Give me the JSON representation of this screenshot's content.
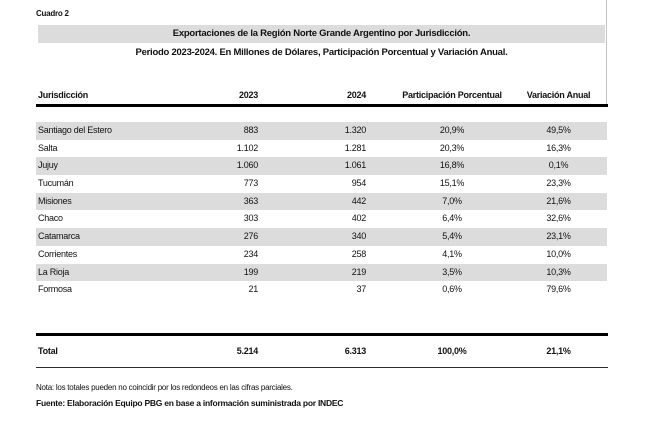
{
  "page": {
    "label": "Cuadro 2",
    "title_line1": "Exportaciones de la Región Norte Grande Argentino por Jurisdicción.",
    "title_line2": "Periodo 2023-2024. En Millones de Dólares, Participación Porcentual y Variación Anual."
  },
  "table": {
    "columns": [
      "Jurisdicción",
      "2023",
      "2024",
      "Participación Porcentual",
      "Variación Anual"
    ],
    "rows": [
      {
        "jurisdiccion": "Santiago del Estero",
        "y2023": "883",
        "y2024": "1.320",
        "participacion": "20,9%",
        "variacion": "49,5%"
      },
      {
        "jurisdiccion": "Salta",
        "y2023": "1.102",
        "y2024": "1.281",
        "participacion": "20,3%",
        "variacion": "16,3%"
      },
      {
        "jurisdiccion": "Jujuy",
        "y2023": "1.060",
        "y2024": "1.061",
        "participacion": "16,8%",
        "variacion": "0,1%"
      },
      {
        "jurisdiccion": "Tucumán",
        "y2023": "773",
        "y2024": "954",
        "participacion": "15,1%",
        "variacion": "23,3%"
      },
      {
        "jurisdiccion": "Misiones",
        "y2023": "363",
        "y2024": "442",
        "participacion": "7,0%",
        "variacion": "21,6%"
      },
      {
        "jurisdiccion": "Chaco",
        "y2023": "303",
        "y2024": "402",
        "participacion": "6,4%",
        "variacion": "32,6%"
      },
      {
        "jurisdiccion": "Catamarca",
        "y2023": "276",
        "y2024": "340",
        "participacion": "5,4%",
        "variacion": "23,1%"
      },
      {
        "jurisdiccion": "Corrientes",
        "y2023": "234",
        "y2024": "258",
        "participacion": "4,1%",
        "variacion": "10,0%"
      },
      {
        "jurisdiccion": "La Rioja",
        "y2023": "199",
        "y2024": "219",
        "participacion": "3,5%",
        "variacion": "10,3%"
      },
      {
        "jurisdiccion": "Formosa",
        "y2023": "21",
        "y2024": "37",
        "participacion": "0,6%",
        "variacion": "79,6%"
      }
    ],
    "total": {
      "label": "Total",
      "y2023": "5.214",
      "y2024": "6.313",
      "participacion": "100,0%",
      "variacion": "21,1%"
    }
  },
  "footnotes": {
    "nota": "Nota: los totales pueden no coincidir por los redondeos en las cifras parciales.",
    "fuente": "Fuente: Elaboración Equipo PBG en base a información suministrada por INDEC"
  },
  "colors": {
    "stripe": "#dcdcdc",
    "title_bar": "#dcdcdc",
    "rule": "#000000",
    "text": "#111111"
  }
}
